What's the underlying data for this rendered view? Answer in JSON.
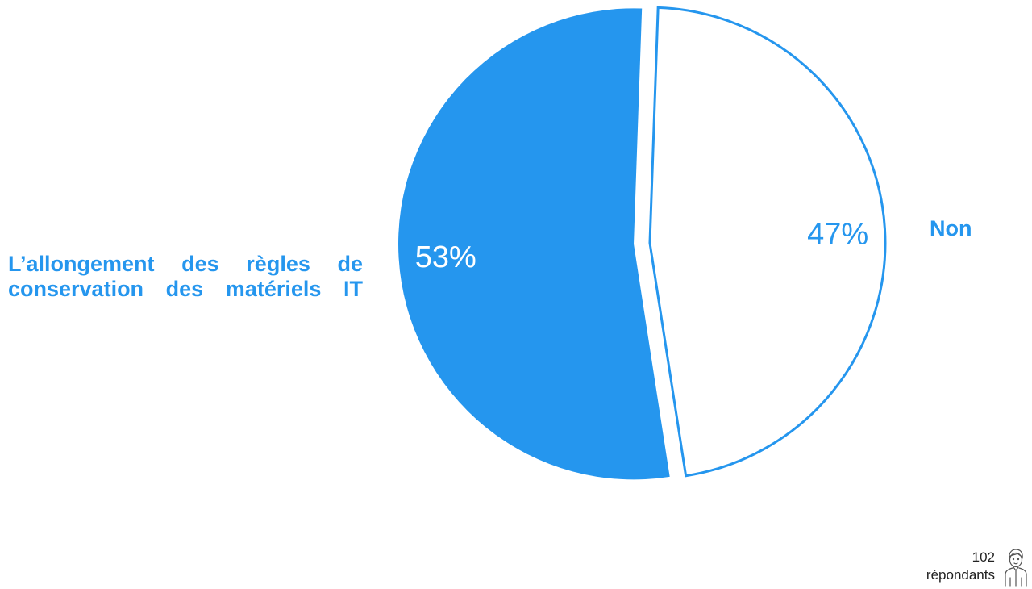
{
  "chart_data": {
    "type": "pie",
    "slices": [
      {
        "label": "L’allongement des règles de conservation des matériels IT",
        "value": 53,
        "value_label": "53%",
        "style": "filled"
      },
      {
        "label": "Non",
        "value": 47,
        "value_label": "47%",
        "style": "outline"
      }
    ],
    "colors": {
      "accent": "#2596ee",
      "outline_fill": "#ffffff"
    }
  },
  "labels": {
    "left_line1": "L’allongement des règles de",
    "left_line2": "conservation des matériels IT",
    "right": "Non"
  },
  "footer": {
    "count": "102",
    "caption": "répondants",
    "icon": "person-icon"
  }
}
